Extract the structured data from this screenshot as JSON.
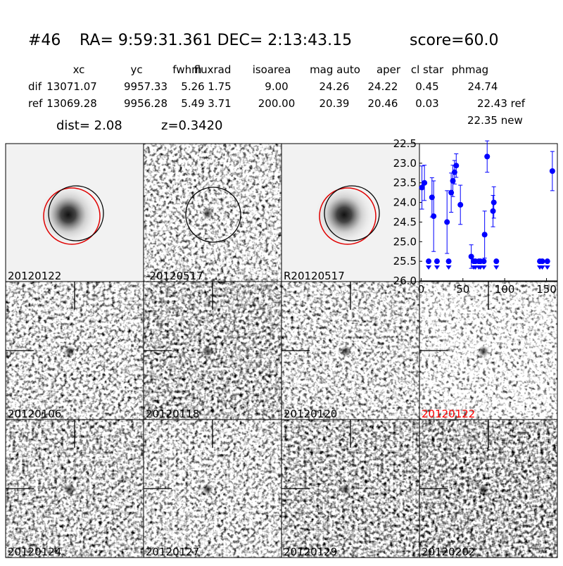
{
  "header": {
    "id": "#46",
    "coords": "RA= 9:59:31.361 DEC= 2:13:43.15",
    "score": "score=60.0"
  },
  "table": {
    "columns": [
      "xc",
      "yc",
      "fwhm",
      "fluxrad",
      "isoarea",
      "mag auto",
      "aper",
      "cl star",
      "phmag"
    ],
    "rows": [
      [
        "dif",
        "13071.07",
        "9957.33",
        "5.26",
        "1.75",
        "9.00",
        "24.26",
        "24.22",
        "0.45",
        "24.74"
      ],
      [
        "ref",
        "13069.28",
        "9956.28",
        "5.49",
        "3.71",
        "200.00",
        "20.39",
        "20.46",
        "0.03",
        "22.43 ref"
      ]
    ],
    "extra": "22.35 new"
  },
  "dist": "dist=  2.08",
  "z": "z=0.3420",
  "stamps": [
    {
      "label": "20120122"
    },
    {
      "label": "-20120517"
    },
    {
      "label": "R20120517"
    },
    {
      "label": "20120106"
    },
    {
      "label": "20120118"
    },
    {
      "label": "20120120"
    },
    {
      "label": "20120122",
      "color": "#ff0000"
    },
    {
      "label": "20120124"
    },
    {
      "label": "20120127"
    },
    {
      "label": "20120129"
    },
    {
      "label": "20120202"
    }
  ],
  "chart_data": {
    "type": "scatter",
    "xlim": [
      -2,
      163
    ],
    "xticks": [
      0,
      50,
      100,
      150
    ],
    "ylim": [
      26.0,
      22.5
    ],
    "yticks": [
      {
        "value": 22.5,
        "label": "22.5"
      },
      {
        "value": 23.0,
        "label": "23.0"
      },
      {
        "value": 23.5,
        "label": "23.5"
      },
      {
        "value": 24.0,
        "label": "24.0"
      },
      {
        "value": 24.5,
        "label": "24.5"
      },
      {
        "value": 25.0,
        "label": "25.0"
      },
      {
        "value": 25.5,
        "label": "25.5"
      },
      {
        "value": 26.0,
        "label": "26.0"
      }
    ],
    "series": [
      {
        "color": "#0000ff",
        "marker": "circle",
        "x": [
          1,
          4,
          13,
          15,
          31,
          36,
          38,
          40,
          42,
          47,
          60,
          76,
          79,
          86,
          87,
          157
        ],
        "values": [
          23.62,
          23.5,
          23.87,
          24.35,
          24.5,
          23.75,
          23.45,
          23.23,
          23.06,
          24.06,
          25.38,
          24.82,
          22.83,
          24.22,
          24.0,
          23.2
        ],
        "errors": [
          0.55,
          0.45,
          0.5,
          0.9,
          0.8,
          0.5,
          0.4,
          0.3,
          0.3,
          0.5,
          0.3,
          0.6,
          0.4,
          0.4,
          0.4,
          0.5
        ]
      },
      {
        "color": "#0000ff",
        "marker": "triangle-down",
        "x": [
          9,
          19,
          33,
          63,
          65,
          69,
          71,
          75,
          90,
          142,
          145,
          151
        ],
        "values": [
          25.5,
          25.5,
          25.5,
          25.5,
          25.5,
          25.5,
          25.5,
          25.5,
          25.5,
          25.5,
          25.5,
          25.5
        ]
      }
    ]
  }
}
